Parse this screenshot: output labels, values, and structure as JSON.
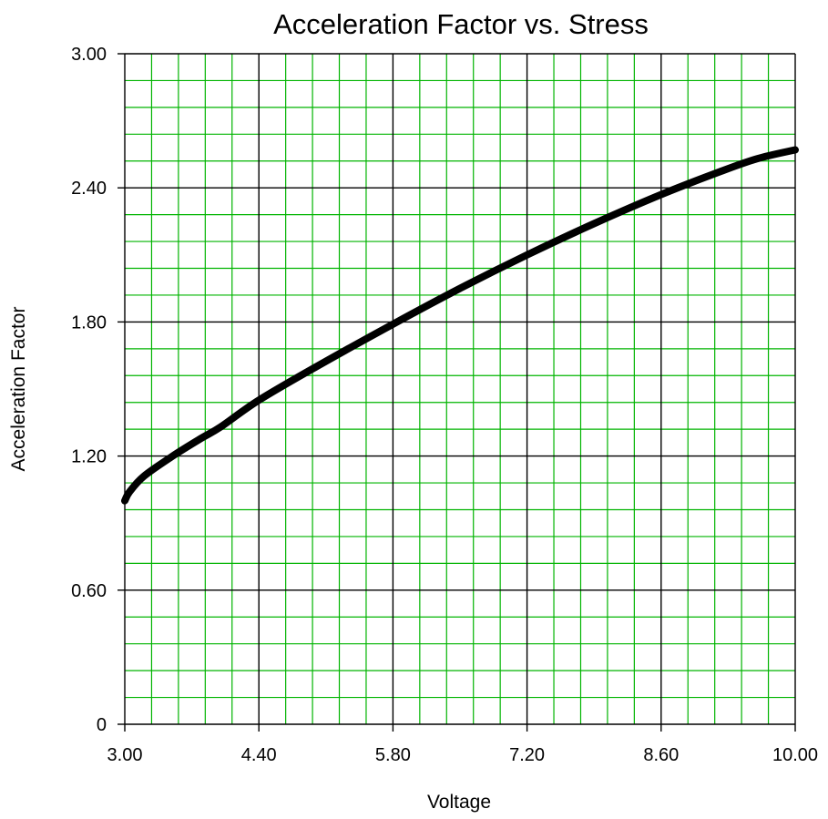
{
  "chart_data": {
    "type": "line",
    "title": "Acceleration Factor vs. Stress",
    "xlabel": "Voltage",
    "ylabel": "Acceleration Factor",
    "xlim": [
      3.0,
      10.0
    ],
    "ylim": [
      0,
      3.0
    ],
    "x_ticks": [
      "3.00",
      "4.40",
      "5.80",
      "7.20",
      "8.60",
      "10.00"
    ],
    "y_ticks": [
      "0",
      "0.60",
      "1.20",
      "1.80",
      "2.40",
      "3.00"
    ],
    "grid": true,
    "minor_grid_per_major_x": 5,
    "minor_grid_per_major_y": 5,
    "colors": {
      "major_grid": "#000000",
      "minor_grid": "#00b400",
      "line": "#000000"
    },
    "series": [
      {
        "x": [
          3.0,
          3.05,
          3.2,
          3.5,
          3.8,
          4.0,
          4.4,
          5.0,
          5.8,
          6.5,
          7.2,
          7.9,
          8.6,
          9.2,
          9.6,
          10.0
        ],
        "values": [
          1.0,
          1.04,
          1.11,
          1.2,
          1.28,
          1.33,
          1.45,
          1.6,
          1.79,
          1.95,
          2.1,
          2.24,
          2.37,
          2.47,
          2.53,
          2.57
        ]
      }
    ]
  }
}
